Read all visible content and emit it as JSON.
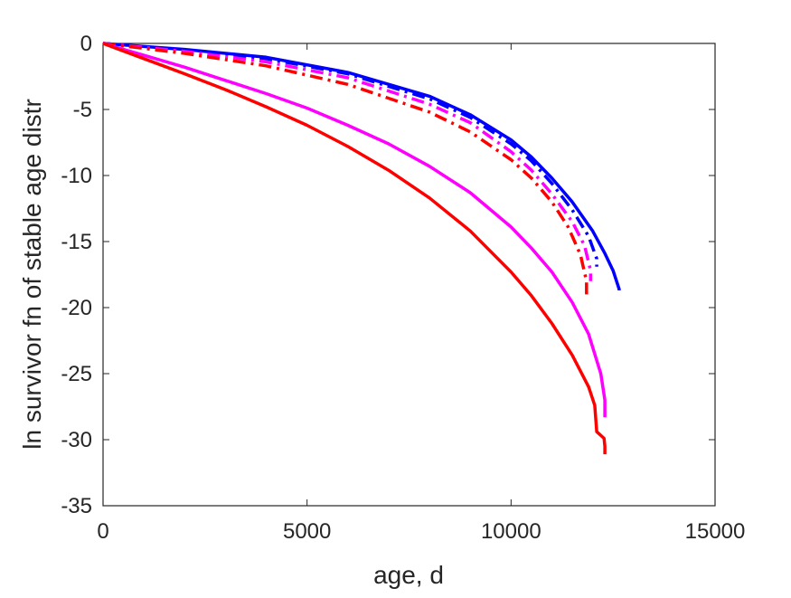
{
  "chart_data": {
    "type": "line",
    "title": "",
    "xlabel": "age, d",
    "ylabel": "ln survivor fn of stable age distr",
    "xlim": [
      0,
      15000
    ],
    "ylim": [
      -35,
      0
    ],
    "xticks": [
      0,
      5000,
      10000,
      15000
    ],
    "yticks": [
      0,
      -5,
      -10,
      -15,
      -20,
      -25,
      -30,
      -35
    ],
    "grid": false,
    "legend": "none",
    "series": [
      {
        "color": "#0000ff",
        "style": "solid",
        "x": [
          0,
          2000,
          4000,
          6000,
          8000,
          9000,
          10000,
          10500,
          11000,
          11500,
          12000,
          12300,
          12500,
          12650,
          12650
        ],
        "y": [
          0,
          -0.45,
          -1.05,
          -2.2,
          -4.0,
          -5.4,
          -7.3,
          -8.6,
          -10.2,
          -12.0,
          -14.2,
          -15.9,
          -17.2,
          -18.6,
          -18.7
        ]
      },
      {
        "color": "#0000ff",
        "style": "dashdot",
        "x": [
          0,
          2000,
          4000,
          6000,
          8000,
          9000,
          10000,
          10500,
          11000,
          11500,
          11900,
          12100,
          12100
        ],
        "y": [
          0,
          -0.5,
          -1.15,
          -2.3,
          -4.2,
          -5.6,
          -7.6,
          -8.9,
          -10.6,
          -12.6,
          -14.6,
          -16.3,
          -16.9
        ]
      },
      {
        "color": "#ff00ff",
        "style": "dashdot",
        "x": [
          0,
          2000,
          4000,
          6000,
          8000,
          9000,
          10000,
          10500,
          11000,
          11500,
          11800,
          11950,
          11950
        ],
        "y": [
          0,
          -0.6,
          -1.4,
          -2.6,
          -4.6,
          -6.0,
          -8.2,
          -9.6,
          -11.4,
          -13.5,
          -15.3,
          -17.2,
          -18.0
        ]
      },
      {
        "color": "#ff0000",
        "style": "dashdot",
        "x": [
          0,
          2000,
          4000,
          6000,
          8000,
          9000,
          10000,
          10500,
          11000,
          11400,
          11700,
          11850,
          11850
        ],
        "y": [
          0,
          -0.75,
          -1.7,
          -3.1,
          -5.2,
          -6.7,
          -8.8,
          -10.2,
          -12.0,
          -13.9,
          -16.0,
          -18.0,
          -19.0
        ]
      },
      {
        "color": "#ff00ff",
        "style": "solid",
        "x": [
          0,
          1000,
          2000,
          3000,
          4000,
          5000,
          6000,
          7000,
          8000,
          9000,
          10000,
          10500,
          11000,
          11500,
          11900,
          12200,
          12300,
          12300
        ],
        "y": [
          0,
          -0.9,
          -1.8,
          -2.8,
          -3.8,
          -4.9,
          -6.2,
          -7.6,
          -9.3,
          -11.3,
          -13.9,
          -15.5,
          -17.3,
          -19.6,
          -22.0,
          -25.0,
          -27.0,
          -28.3
        ]
      },
      {
        "color": "#ff0000",
        "style": "solid",
        "x": [
          0,
          1000,
          2000,
          3000,
          4000,
          5000,
          6000,
          7000,
          8000,
          9000,
          10000,
          10500,
          11000,
          11500,
          11900,
          12050,
          12100,
          12280,
          12300,
          12300
        ],
        "y": [
          0,
          -1.15,
          -2.3,
          -3.5,
          -4.8,
          -6.2,
          -7.8,
          -9.6,
          -11.7,
          -14.2,
          -17.3,
          -19.1,
          -21.2,
          -23.6,
          -26.0,
          -27.4,
          -29.4,
          -29.9,
          -30.5,
          -31.1
        ]
      }
    ]
  }
}
